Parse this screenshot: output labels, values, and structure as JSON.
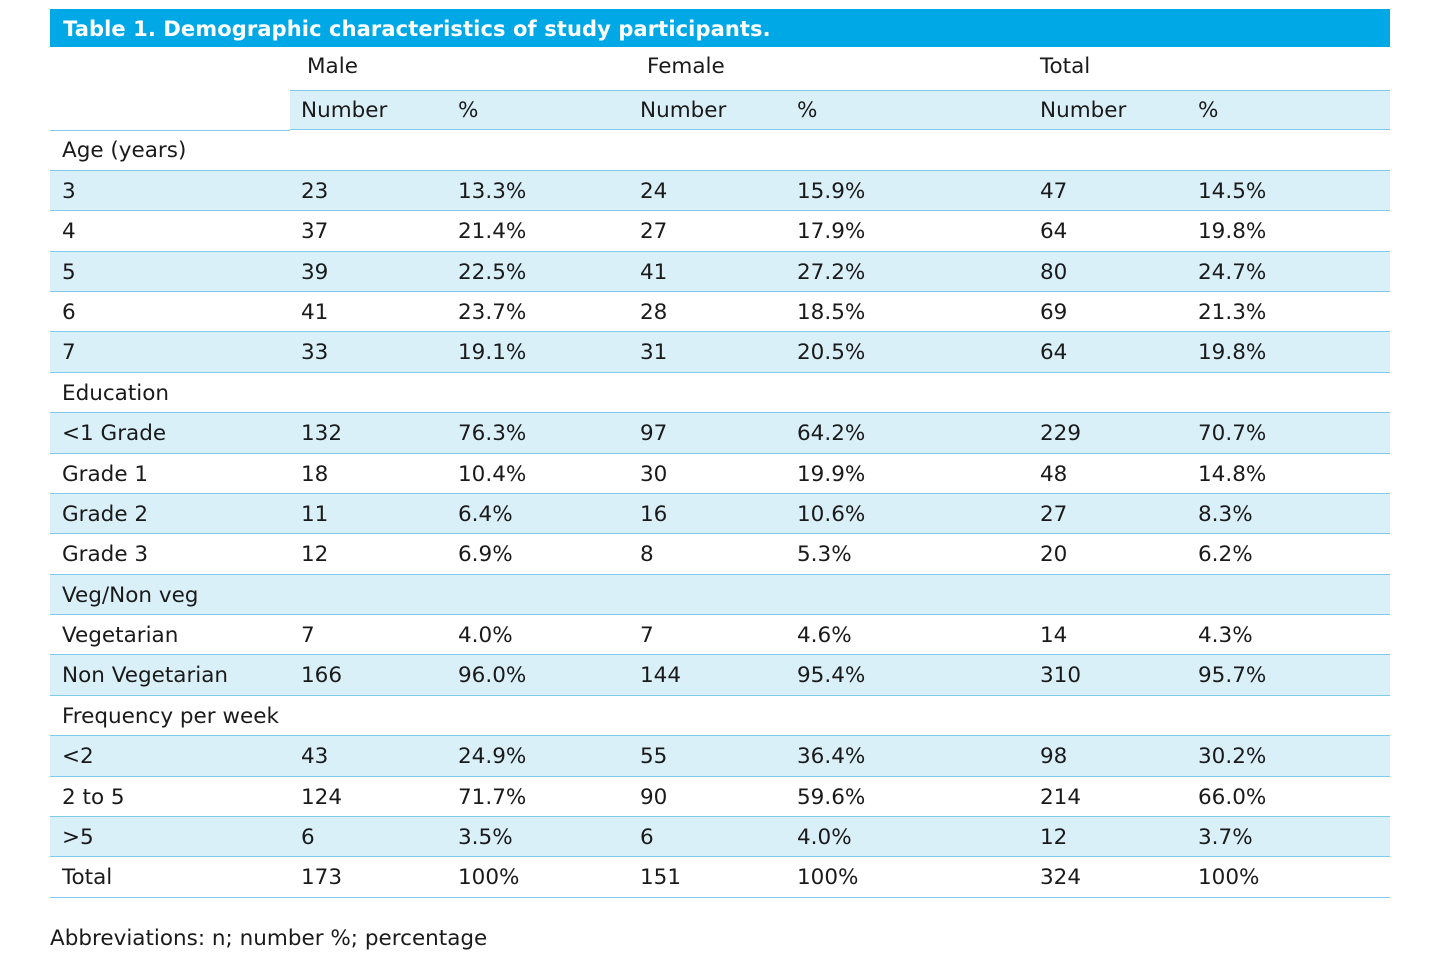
{
  "table": {
    "caption": "Table 1. Demographic characteristics of study participants.",
    "group_headers": [
      "Male",
      "Female",
      "Total"
    ],
    "sub_headers": [
      "Number",
      "%",
      "Number",
      "%",
      "Number",
      "%"
    ],
    "rows": [
      {
        "type": "section",
        "label": "Age (years)"
      },
      {
        "type": "data",
        "label": "3",
        "values": [
          "23",
          "13.3%",
          "24",
          "15.9%",
          "47",
          "14.5%"
        ]
      },
      {
        "type": "data",
        "label": "4",
        "values": [
          "37",
          "21.4%",
          "27",
          "17.9%",
          "64",
          "19.8%"
        ]
      },
      {
        "type": "data",
        "label": "5",
        "values": [
          "39",
          "22.5%",
          "41",
          "27.2%",
          "80",
          "24.7%"
        ]
      },
      {
        "type": "data",
        "label": "6",
        "values": [
          "41",
          "23.7%",
          "28",
          "18.5%",
          "69",
          "21.3%"
        ]
      },
      {
        "type": "data",
        "label": "7",
        "values": [
          "33",
          "19.1%",
          "31",
          "20.5%",
          "64",
          "19.8%"
        ]
      },
      {
        "type": "section",
        "label": "Education"
      },
      {
        "type": "data",
        "label": "<1 Grade",
        "values": [
          "132",
          "76.3%",
          "97",
          "64.2%",
          "229",
          "70.7%"
        ]
      },
      {
        "type": "data",
        "label": "Grade 1",
        "values": [
          "18",
          "10.4%",
          "30",
          "19.9%",
          "48",
          "14.8%"
        ]
      },
      {
        "type": "data",
        "label": "Grade 2",
        "values": [
          "11",
          "6.4%",
          "16",
          "10.6%",
          "27",
          "8.3%"
        ]
      },
      {
        "type": "data",
        "label": "Grade 3",
        "values": [
          "12",
          "6.9%",
          "8",
          "5.3%",
          "20",
          "6.2%"
        ]
      },
      {
        "type": "section",
        "label": "Veg/Non veg"
      },
      {
        "type": "data",
        "label": "Vegetarian",
        "values": [
          "7",
          "4.0%",
          "7",
          "4.6%",
          "14",
          "4.3%"
        ]
      },
      {
        "type": "data",
        "label": "Non Vegetarian",
        "values": [
          "166",
          "96.0%",
          "144",
          "95.4%",
          "310",
          "95.7%"
        ]
      },
      {
        "type": "section",
        "label": "Frequency per week"
      },
      {
        "type": "data",
        "label": "<2",
        "values": [
          "43",
          "24.9%",
          "55",
          "36.4%",
          "98",
          "30.2%"
        ]
      },
      {
        "type": "data",
        "label": "2 to 5",
        "values": [
          "124",
          "71.7%",
          "90",
          "59.6%",
          "214",
          "66.0%"
        ]
      },
      {
        "type": "data",
        "label": ">5",
        "values": [
          "6",
          "3.5%",
          "6",
          "4.0%",
          "12",
          "3.7%"
        ]
      },
      {
        "type": "data",
        "label": "Total",
        "values": [
          "173",
          "100%",
          "151",
          "100%",
          "324",
          "100%"
        ]
      }
    ]
  },
  "footnote": "Abbreviations: n; number %; percentage",
  "colors": {
    "caption_bg": "#00a9e6",
    "row_shade": "#daf0f9",
    "rule": "#7fcbe8"
  }
}
